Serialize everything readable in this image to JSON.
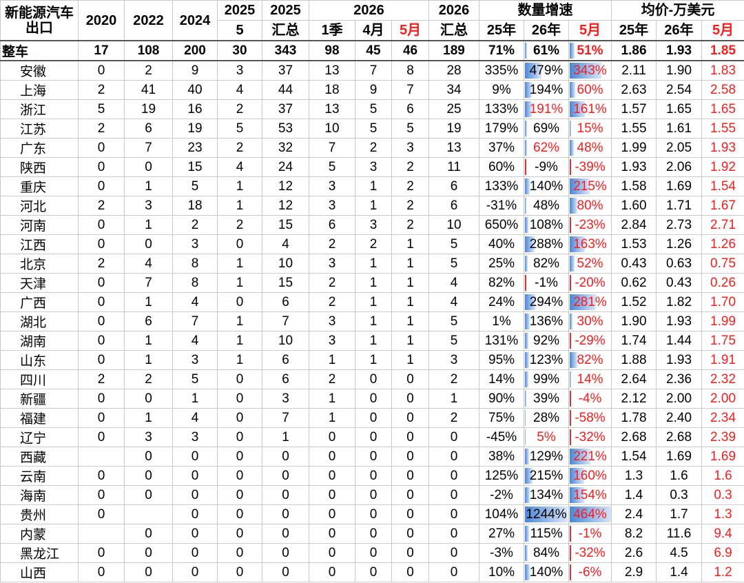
{
  "header": {
    "corner": "新能源汽车出口",
    "row1": [
      "2020",
      "2022",
      "2024",
      "2025",
      "2025",
      "2026",
      "2026",
      "数量增速",
      "均价-万美元"
    ],
    "row2": [
      "5",
      "汇总",
      "1季",
      "4月",
      "5月",
      "汇总",
      "25年",
      "26年",
      "5月",
      "25年",
      "26年",
      "5月"
    ]
  },
  "rows": [
    {
      "name": "整车",
      "cells": [
        17,
        108,
        200,
        30,
        343,
        98,
        45,
        46,
        189,
        "71%",
        "61%",
        "51%",
        "1.86",
        "1.93",
        "1.85"
      ]
    },
    {
      "name": "安徽",
      "cells": [
        0,
        2,
        9,
        3,
        37,
        13,
        7,
        8,
        28,
        "335%",
        "479%",
        "343%",
        "2.11",
        "1.90",
        "1.83"
      ]
    },
    {
      "name": "上海",
      "cells": [
        2,
        41,
        40,
        4,
        44,
        18,
        9,
        7,
        34,
        "9%",
        "194%",
        "60%",
        "2.63",
        "2.54",
        "2.58"
      ]
    },
    {
      "name": "浙江",
      "cells": [
        5,
        19,
        16,
        2,
        37,
        13,
        5,
        6,
        25,
        "133%",
        "191%",
        "161%",
        "1.57",
        "1.65",
        "1.65"
      ]
    },
    {
      "name": "江苏",
      "cells": [
        2,
        6,
        19,
        5,
        53,
        10,
        5,
        5,
        19,
        "179%",
        "69%",
        "15%",
        "1.55",
        "1.61",
        "1.55"
      ]
    },
    {
      "name": "广东",
      "cells": [
        0,
        7,
        23,
        2,
        32,
        7,
        2,
        3,
        13,
        "37%",
        "62%",
        "48%",
        "1.99",
        "2.05",
        "1.93"
      ]
    },
    {
      "name": "陕西",
      "cells": [
        0,
        0,
        15,
        4,
        24,
        5,
        3,
        2,
        11,
        "60%",
        "-9%",
        "-39%",
        "1.93",
        "2.06",
        "1.92"
      ]
    },
    {
      "name": "重庆",
      "cells": [
        0,
        1,
        5,
        1,
        12,
        3,
        1,
        2,
        6,
        "133%",
        "140%",
        "215%",
        "1.58",
        "1.69",
        "1.54"
      ]
    },
    {
      "name": "河北",
      "cells": [
        2,
        3,
        18,
        1,
        12,
        3,
        1,
        2,
        6,
        "-31%",
        "48%",
        "80%",
        "1.60",
        "1.71",
        "1.67"
      ]
    },
    {
      "name": "河南",
      "cells": [
        0,
        1,
        2,
        2,
        15,
        6,
        3,
        2,
        10,
        "650%",
        "108%",
        "-23%",
        "2.84",
        "2.73",
        "2.71"
      ]
    },
    {
      "name": "江西",
      "cells": [
        0,
        0,
        3,
        0,
        4,
        2,
        2,
        1,
        5,
        "40%",
        "288%",
        "163%",
        "1.53",
        "1.26",
        "1.26"
      ]
    },
    {
      "name": "北京",
      "cells": [
        2,
        4,
        8,
        1,
        10,
        3,
        1,
        1,
        5,
        "25%",
        "82%",
        "52%",
        "0.43",
        "0.63",
        "0.75"
      ]
    },
    {
      "name": "天津",
      "cells": [
        0,
        7,
        8,
        1,
        15,
        2,
        1,
        1,
        4,
        "82%",
        "-1%",
        "-20%",
        "0.62",
        "0.43",
        "0.26"
      ]
    },
    {
      "name": "广西",
      "cells": [
        0,
        1,
        4,
        0,
        6,
        2,
        1,
        1,
        4,
        "24%",
        "294%",
        "281%",
        "1.52",
        "1.82",
        "1.70"
      ]
    },
    {
      "name": "湖北",
      "cells": [
        0,
        6,
        7,
        1,
        7,
        3,
        1,
        1,
        5,
        "1%",
        "136%",
        "30%",
        "1.90",
        "1.93",
        "1.99"
      ]
    },
    {
      "name": "湖南",
      "cells": [
        0,
        1,
        4,
        1,
        10,
        3,
        1,
        1,
        5,
        "131%",
        "92%",
        "-29%",
        "1.74",
        "1.44",
        "1.75"
      ]
    },
    {
      "name": "山东",
      "cells": [
        0,
        1,
        3,
        1,
        6,
        1,
        1,
        1,
        3,
        "95%",
        "123%",
        "82%",
        "1.88",
        "1.93",
        "1.91"
      ]
    },
    {
      "name": "四川",
      "cells": [
        2,
        2,
        5,
        0,
        6,
        2,
        0,
        0,
        2,
        "14%",
        "99%",
        "14%",
        "2.64",
        "2.36",
        "2.32"
      ]
    },
    {
      "name": "新疆",
      "cells": [
        0,
        0,
        1,
        0,
        3,
        1,
        0,
        0,
        1,
        "90%",
        "39%",
        "-4%",
        "2.12",
        "2.00",
        "2.00"
      ]
    },
    {
      "name": "福建",
      "cells": [
        0,
        1,
        4,
        0,
        7,
        1,
        0,
        0,
        2,
        "75%",
        "28%",
        "-58%",
        "1.78",
        "2.40",
        "2.34"
      ]
    },
    {
      "name": "辽宁",
      "cells": [
        0,
        3,
        3,
        0,
        1,
        0,
        0,
        0,
        0,
        "-45%",
        "5%",
        "-32%",
        "2.68",
        "2.68",
        "2.39"
      ]
    },
    {
      "name": "西藏",
      "cells": [
        null,
        0,
        0,
        0,
        0,
        0,
        0,
        0,
        0,
        "38%",
        "129%",
        "221%",
        "1.54",
        "1.69",
        "1.69"
      ]
    },
    {
      "name": "云南",
      "cells": [
        0,
        0,
        0,
        0,
        0,
        0,
        0,
        0,
        0,
        "125%",
        "215%",
        "160%",
        "1.3",
        "1.6",
        "1.6"
      ]
    },
    {
      "name": "海南",
      "cells": [
        0,
        0,
        0,
        0,
        0,
        0,
        0,
        0,
        0,
        "-2%",
        "134%",
        "154%",
        "1.4",
        "0.3",
        "0.3"
      ]
    },
    {
      "name": "贵州",
      "cells": [
        0,
        null,
        0,
        0,
        0,
        0,
        0,
        0,
        0,
        "104%",
        "1244%",
        "464%",
        "2.4",
        "1.7",
        "1.3"
      ]
    },
    {
      "name": "内蒙",
      "cells": [
        null,
        0,
        0,
        0,
        0,
        0,
        0,
        0,
        0,
        "27%",
        "115%",
        "-1%",
        "8.2",
        "11.6",
        "9.4"
      ]
    },
    {
      "name": "黑龙江",
      "cells": [
        0,
        0,
        0,
        0,
        0,
        0,
        0,
        0,
        0,
        "-3%",
        "84%",
        "-32%",
        "2.6",
        "4.5",
        "6.9"
      ]
    },
    {
      "name": "山西",
      "cells": [
        0,
        0,
        0,
        0,
        0,
        0,
        0,
        0,
        0,
        "10%",
        "140%",
        "-6%",
        "2.9",
        "1.4",
        "1.2"
      ]
    }
  ]
}
